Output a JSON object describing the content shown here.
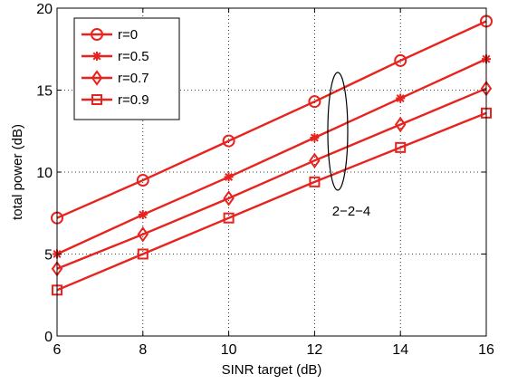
{
  "chart_data": {
    "type": "line",
    "title": "",
    "xlabel": "SINR target (dB)",
    "ylabel": "total power (dB)",
    "xlim": [
      6,
      16
    ],
    "ylim": [
      0,
      20
    ],
    "xticks": [
      6,
      8,
      10,
      12,
      14,
      16
    ],
    "yticks": [
      0,
      5,
      10,
      15,
      20
    ],
    "grid": true,
    "legend_position": "top-left",
    "annotation": "2−2−4",
    "x": [
      6,
      8,
      10,
      12,
      14,
      16
    ],
    "series": [
      {
        "name": "r=0",
        "marker": "circle",
        "color": "#e8231e",
        "values": [
          7.2,
          9.5,
          11.9,
          14.3,
          16.8,
          19.2
        ]
      },
      {
        "name": "r=0.5",
        "marker": "star",
        "color": "#e8231e",
        "values": [
          5.0,
          7.4,
          9.7,
          12.1,
          14.5,
          16.9
        ]
      },
      {
        "name": "r=0.7",
        "marker": "diamond",
        "color": "#e8231e",
        "values": [
          4.1,
          6.2,
          8.4,
          10.7,
          12.9,
          15.1
        ]
      },
      {
        "name": "r=0.9",
        "marker": "square",
        "color": "#e8231e",
        "values": [
          2.8,
          5.0,
          7.2,
          9.4,
          11.5,
          13.6
        ]
      }
    ]
  }
}
